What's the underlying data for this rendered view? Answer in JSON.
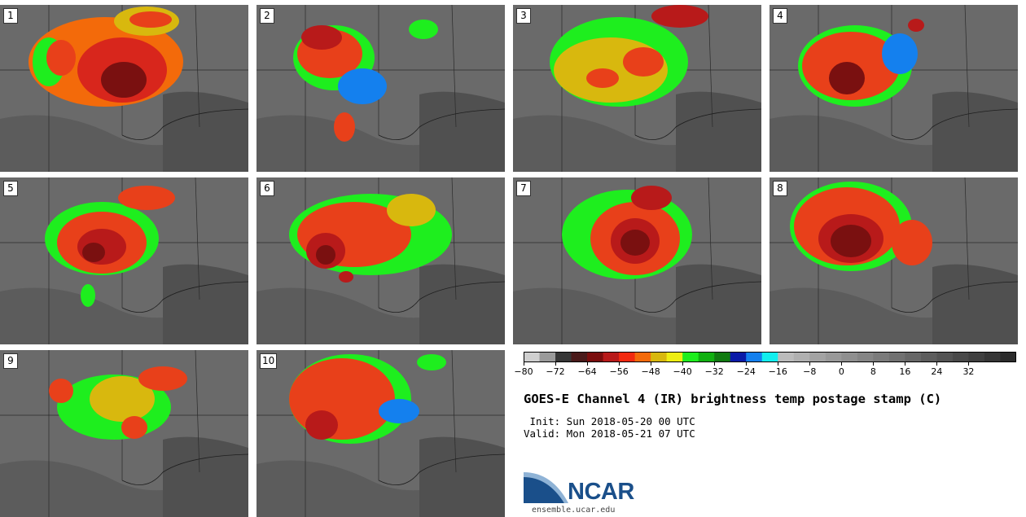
{
  "panels": [
    {
      "label": "1"
    },
    {
      "label": "2"
    },
    {
      "label": "3"
    },
    {
      "label": "4"
    },
    {
      "label": "5"
    },
    {
      "label": "6"
    },
    {
      "label": "7"
    },
    {
      "label": "8"
    },
    {
      "label": "9"
    },
    {
      "label": "10"
    }
  ],
  "colorbar": {
    "ticks": [
      "−80",
      "−72",
      "−64",
      "−56",
      "−48",
      "−40",
      "−32",
      "−24",
      "−16",
      "−8",
      "0",
      "8",
      "16",
      "24",
      "32"
    ],
    "colors": [
      "#cfcfcf",
      "#9a9a9a",
      "#363636",
      "#4a1a1a",
      "#7a0d0d",
      "#b81a1a",
      "#f22a10",
      "#f36a0a",
      "#d8b80e",
      "#eeee12",
      "#1eee1e",
      "#10b010",
      "#107a10",
      "#0a1aa8",
      "#1480ee",
      "#12eeee",
      "#bbbbbb",
      "#b0b0b0",
      "#a3a3a3",
      "#999999",
      "#8f8f8f",
      "#858585",
      "#7b7b7b",
      "#717171",
      "#676767",
      "#5d5d5d",
      "#535353",
      "#494949",
      "#3f3f3f",
      "#353535",
      "#2b2b2b"
    ]
  },
  "title": "GOES-E Channel 4 (IR) brightness temp postage stamp (C)",
  "init_line": " Init: Sun 2018-05-20 00 UTC",
  "valid_line": "Valid: Mon 2018-05-21 07 UTC",
  "logo": {
    "text": "NCAR",
    "url": "ensemble.ucar.edu"
  }
}
